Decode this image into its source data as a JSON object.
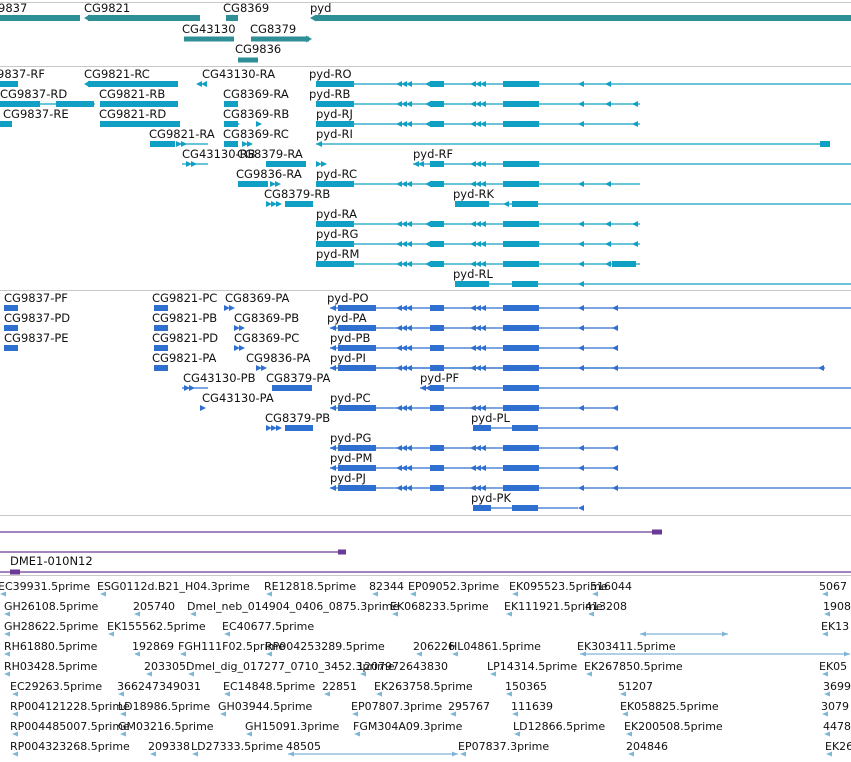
{
  "colors": {
    "gene_band": "#2f8f96",
    "rna_band": "#10a0c4",
    "cds_band": "#2f6fd0",
    "clone_band": "#6a3a96",
    "est_band": "#7fb5d8",
    "track_divider": "#c8c8c8"
  },
  "tracks": {
    "genes": {
      "labels": [
        {
          "text": "9837"
        },
        {
          "text": "CG9821"
        },
        {
          "text": "CG8369"
        },
        {
          "text": "pyd"
        },
        {
          "text": "CG43130"
        },
        {
          "text": "CG8379"
        },
        {
          "text": "CG9836"
        }
      ]
    },
    "transcripts": {
      "labels": [
        {
          "text": "9837-RF"
        },
        {
          "text": "CG9821-RC"
        },
        {
          "text": "CG43130-RA"
        },
        {
          "text": "pyd-RO"
        },
        {
          "text": "CG9837-RD"
        },
        {
          "text": "CG9821-RB"
        },
        {
          "text": "CG8369-RA"
        },
        {
          "text": "pyd-RB"
        },
        {
          "text": "CG9837-RE"
        },
        {
          "text": "CG9821-RD"
        },
        {
          "text": "CG8369-RB"
        },
        {
          "text": "pyd-RJ"
        },
        {
          "text": "CG9821-RA"
        },
        {
          "text": "CG8369-RC"
        },
        {
          "text": "pyd-RI"
        },
        {
          "text": "CG43130-RB"
        },
        {
          "text": "CG8379-RA"
        },
        {
          "text": "pyd-RF"
        },
        {
          "text": "CG9836-RA"
        },
        {
          "text": "pyd-RC"
        },
        {
          "text": "CG8379-RB"
        },
        {
          "text": "pyd-RK"
        },
        {
          "text": "pyd-RA"
        },
        {
          "text": "pyd-RG"
        },
        {
          "text": "pyd-RM"
        },
        {
          "text": "pyd-RL"
        }
      ]
    },
    "cds": {
      "labels": [
        {
          "text": "CG9837-PF"
        },
        {
          "text": "CG9821-PC"
        },
        {
          "text": "CG8369-PA"
        },
        {
          "text": "pyd-PO"
        },
        {
          "text": "CG9837-PD"
        },
        {
          "text": "CG9821-PB"
        },
        {
          "text": "CG8369-PB"
        },
        {
          "text": "pyd-PA"
        },
        {
          "text": "CG9837-PE"
        },
        {
          "text": "CG9821-PD"
        },
        {
          "text": "CG8369-PC"
        },
        {
          "text": "pyd-PB"
        },
        {
          "text": "CG9821-PA"
        },
        {
          "text": "CG9836-PA"
        },
        {
          "text": "pyd-PI"
        },
        {
          "text": "CG43130-PB"
        },
        {
          "text": "CG8379-PA"
        },
        {
          "text": "pyd-PF"
        },
        {
          "text": "CG43130-PA"
        },
        {
          "text": "pyd-PC"
        },
        {
          "text": "CG8379-PB"
        },
        {
          "text": "pyd-PL"
        },
        {
          "text": "pyd-PG"
        },
        {
          "text": "pyd-PM"
        },
        {
          "text": "pyd-PJ"
        },
        {
          "text": "pyd-PK"
        }
      ]
    },
    "clones": {
      "labels": [
        {
          "text": "DME1-010N12"
        }
      ]
    },
    "ests": {
      "labels": [
        {
          "text": "EC39931.5prime"
        },
        {
          "text": "ESG0112d.B21_H04.3prime"
        },
        {
          "text": "RE12818.5prime"
        },
        {
          "text": "82344"
        },
        {
          "text": "EP09052.3prime"
        },
        {
          "text": "EK095523.5prime"
        },
        {
          "text": "516044"
        },
        {
          "text": "5067"
        },
        {
          "text": "GH26108.5prime"
        },
        {
          "text": "205740"
        },
        {
          "text": "Dmel_neb_014904_0406_0875.3prime"
        },
        {
          "text": "EK068233.5prime"
        },
        {
          "text": "EK111921.5prime"
        },
        {
          "text": "413208"
        },
        {
          "text": "1908"
        },
        {
          "text": "GH28622.5prime"
        },
        {
          "text": "EK155562.5prime"
        },
        {
          "text": "EC40677.5prime"
        },
        {
          "text": "EK13"
        },
        {
          "text": "RH61880.5prime"
        },
        {
          "text": "192869"
        },
        {
          "text": "FGH111F02.5prime"
        },
        {
          "text": "RP004253289.5prime"
        },
        {
          "text": "206226"
        },
        {
          "text": "HL04861.5prime"
        },
        {
          "text": "EK303411.5prime"
        },
        {
          "text": "RH03428.5prime"
        },
        {
          "text": "203305"
        },
        {
          "text": "Dmel_dig_017277_0710_3452.3prime"
        },
        {
          "text": "1207972643830"
        },
        {
          "text": "LP14314.5prime"
        },
        {
          "text": "EK267850.5prime"
        },
        {
          "text": "EK05"
        },
        {
          "text": "EC29263.5prime"
        },
        {
          "text": "366247349031"
        },
        {
          "text": "EC14848.5prime"
        },
        {
          "text": "22851"
        },
        {
          "text": "EK263758.5prime"
        },
        {
          "text": "150365"
        },
        {
          "text": "51207"
        },
        {
          "text": "3699"
        },
        {
          "text": "RP004121228.5prime"
        },
        {
          "text": "LD18986.5prime"
        },
        {
          "text": "GH03944.5prime"
        },
        {
          "text": "EP07807.3prime"
        },
        {
          "text": "295767"
        },
        {
          "text": "111639"
        },
        {
          "text": "EK058825.5prime"
        },
        {
          "text": "3079"
        },
        {
          "text": "RP004485007.5prime"
        },
        {
          "text": "GM03216.5prime"
        },
        {
          "text": "GH15091.3prime"
        },
        {
          "text": "FGM304A09.3prime"
        },
        {
          "text": "LD12866.5prime"
        },
        {
          "text": "EK200508.5prime"
        },
        {
          "text": "4478"
        },
        {
          "text": "RP004323268.5prime"
        },
        {
          "text": "209338"
        },
        {
          "text": "LD27333.5prime"
        },
        {
          "text": "48505"
        },
        {
          "text": "EP07837.3prime"
        },
        {
          "text": "204846"
        },
        {
          "text": "EK26"
        }
      ]
    }
  }
}
